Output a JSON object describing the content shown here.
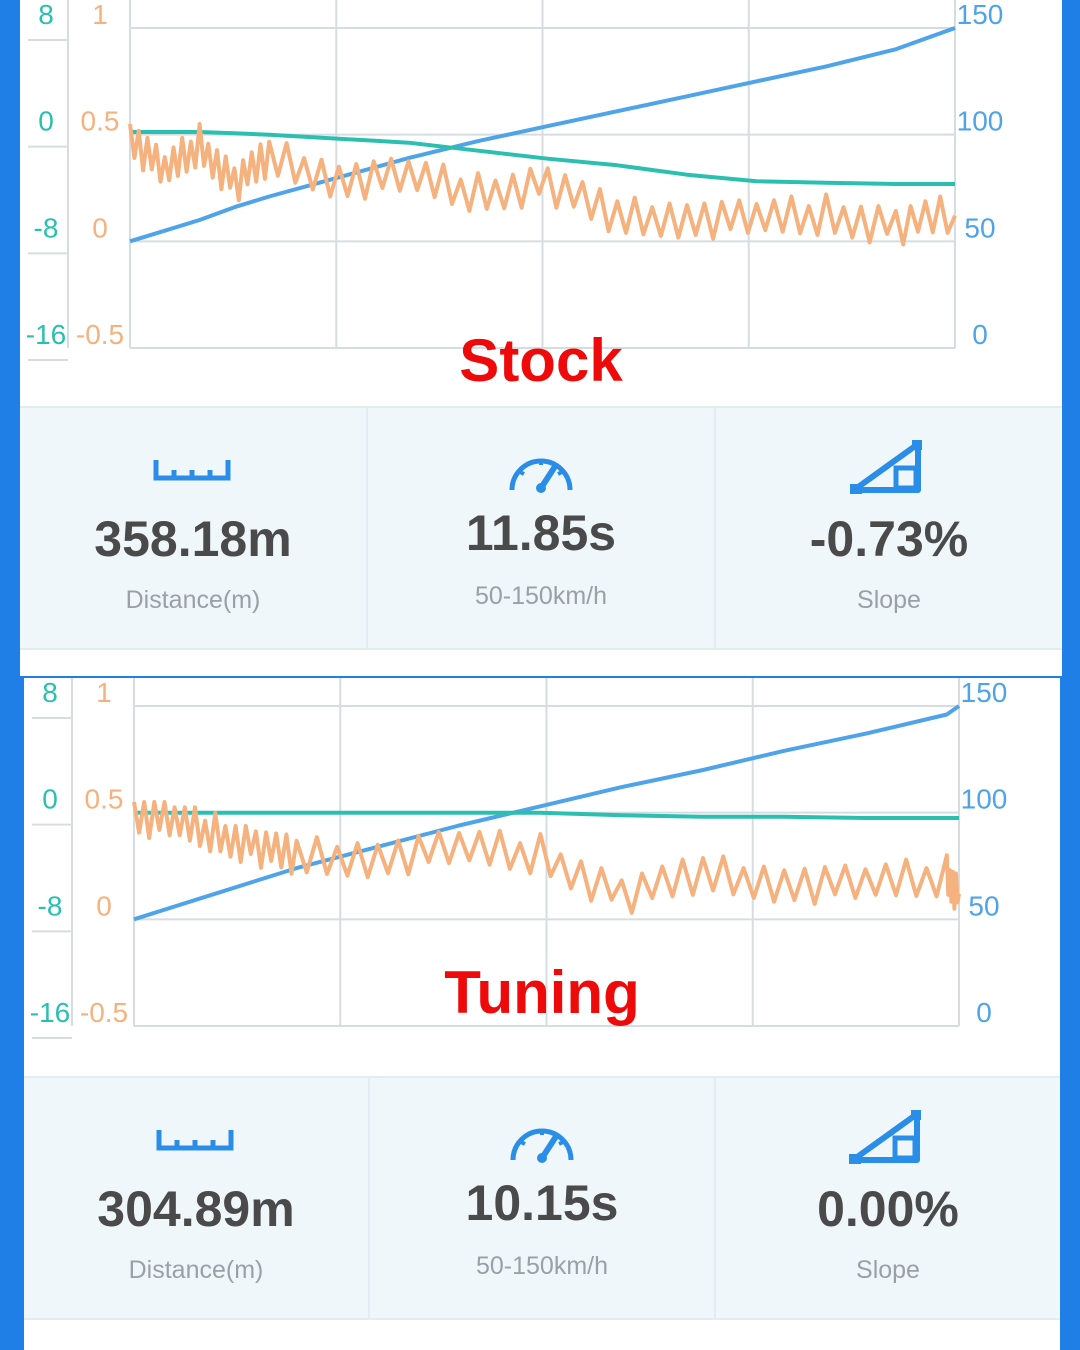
{
  "colors": {
    "frame": "#1f7fe6",
    "label_red": "#ee0a0a",
    "accel": "#f5b27e",
    "slope": "#2bbfb0",
    "speed": "#4fa3e8",
    "stat_bg": "#f0f7fb"
  },
  "runs": [
    {
      "id": "stock",
      "label": "Stock",
      "axes": {
        "left_slope_ticks": [
          "8",
          "0",
          "-8",
          "-16"
        ],
        "left_accel_ticks": [
          "1",
          "0.5",
          "0",
          "-0.5"
        ],
        "right_speed_ticks": [
          "150",
          "100",
          "50",
          "0"
        ]
      },
      "stats": [
        {
          "icon": "ruler-icon",
          "value": "358.18m",
          "label": "Distance(m)"
        },
        {
          "icon": "speedometer-icon",
          "value": "11.85s",
          "label": "50-150km/h"
        },
        {
          "icon": "slope-icon",
          "value": "-0.73%",
          "label": "Slope"
        }
      ]
    },
    {
      "id": "tuning",
      "label": "Tuning",
      "axes": {
        "left_slope_ticks": [
          "8",
          "0",
          "-8",
          "-16"
        ],
        "left_accel_ticks": [
          "1",
          "0.5",
          "0",
          "-0.5"
        ],
        "right_speed_ticks": [
          "150",
          "100",
          "50",
          "0"
        ]
      },
      "stats": [
        {
          "icon": "ruler-icon",
          "value": "304.89m",
          "label": "Distance(m)"
        },
        {
          "icon": "speedometer-icon",
          "value": "10.15s",
          "label": "50-150km/h"
        },
        {
          "icon": "slope-icon",
          "value": "0.00%",
          "label": "Slope"
        }
      ]
    }
  ],
  "chart_data": [
    {
      "type": "line",
      "x": [
        0,
        0.5,
        1,
        1.5,
        2,
        3,
        4,
        5,
        6,
        7,
        8,
        9,
        10,
        11,
        11.85
      ],
      "series": [
        {
          "axis": "right",
          "values": [
            50,
            55,
            60,
            66,
            71,
            80,
            89,
            97,
            104,
            111,
            118,
            125,
            132,
            140,
            150
          ]
        },
        {
          "axis": "left-slope",
          "values": [
            0.2,
            0.2,
            0.2,
            0.1,
            0,
            -0.3,
            -0.6,
            -1.2,
            -1.8,
            -2.3,
            -3.0,
            -3.5,
            -3.6,
            -3.7,
            -3.7
          ]
        },
        {
          "axis": "left-accel",
          "values": [
            0.5,
            0.32,
            0.45,
            0.28,
            0.38,
            0.3,
            0.3,
            0.22,
            0.28,
            0.1,
            0.12,
            0.1,
            0.12,
            0.08,
            0.12
          ]
        }
      ],
      "ylim_slope": [
        -16,
        8
      ],
      "ylim_accel": [
        -0.5,
        1
      ],
      "ylim_speed": [
        0,
        150
      ]
    },
    {
      "type": "line",
      "x": [
        0,
        0.5,
        1,
        1.5,
        2,
        3,
        4,
        5,
        6,
        7,
        8,
        9,
        10,
        10.15
      ],
      "series": [
        {
          "axis": "right",
          "values": [
            50,
            56,
            62,
            68,
            74,
            84,
            94,
            103,
            112,
            120,
            129,
            137,
            146,
            150
          ]
        },
        {
          "axis": "left-slope",
          "values": [
            0,
            0,
            0,
            0,
            0,
            0,
            0,
            0,
            -0.2,
            -0.3,
            -0.3,
            -0.4,
            -0.4,
            -0.4
          ]
        },
        {
          "axis": "left-accel",
          "values": [
            0.5,
            0.45,
            0.4,
            0.35,
            0.28,
            0.3,
            0.33,
            0.3,
            0.12,
            0.2,
            0.18,
            0.16,
            0.2,
            0.12
          ]
        }
      ],
      "ylim_slope": [
        -16,
        8
      ],
      "ylim_accel": [
        -0.5,
        1
      ],
      "ylim_speed": [
        0,
        150
      ]
    }
  ]
}
